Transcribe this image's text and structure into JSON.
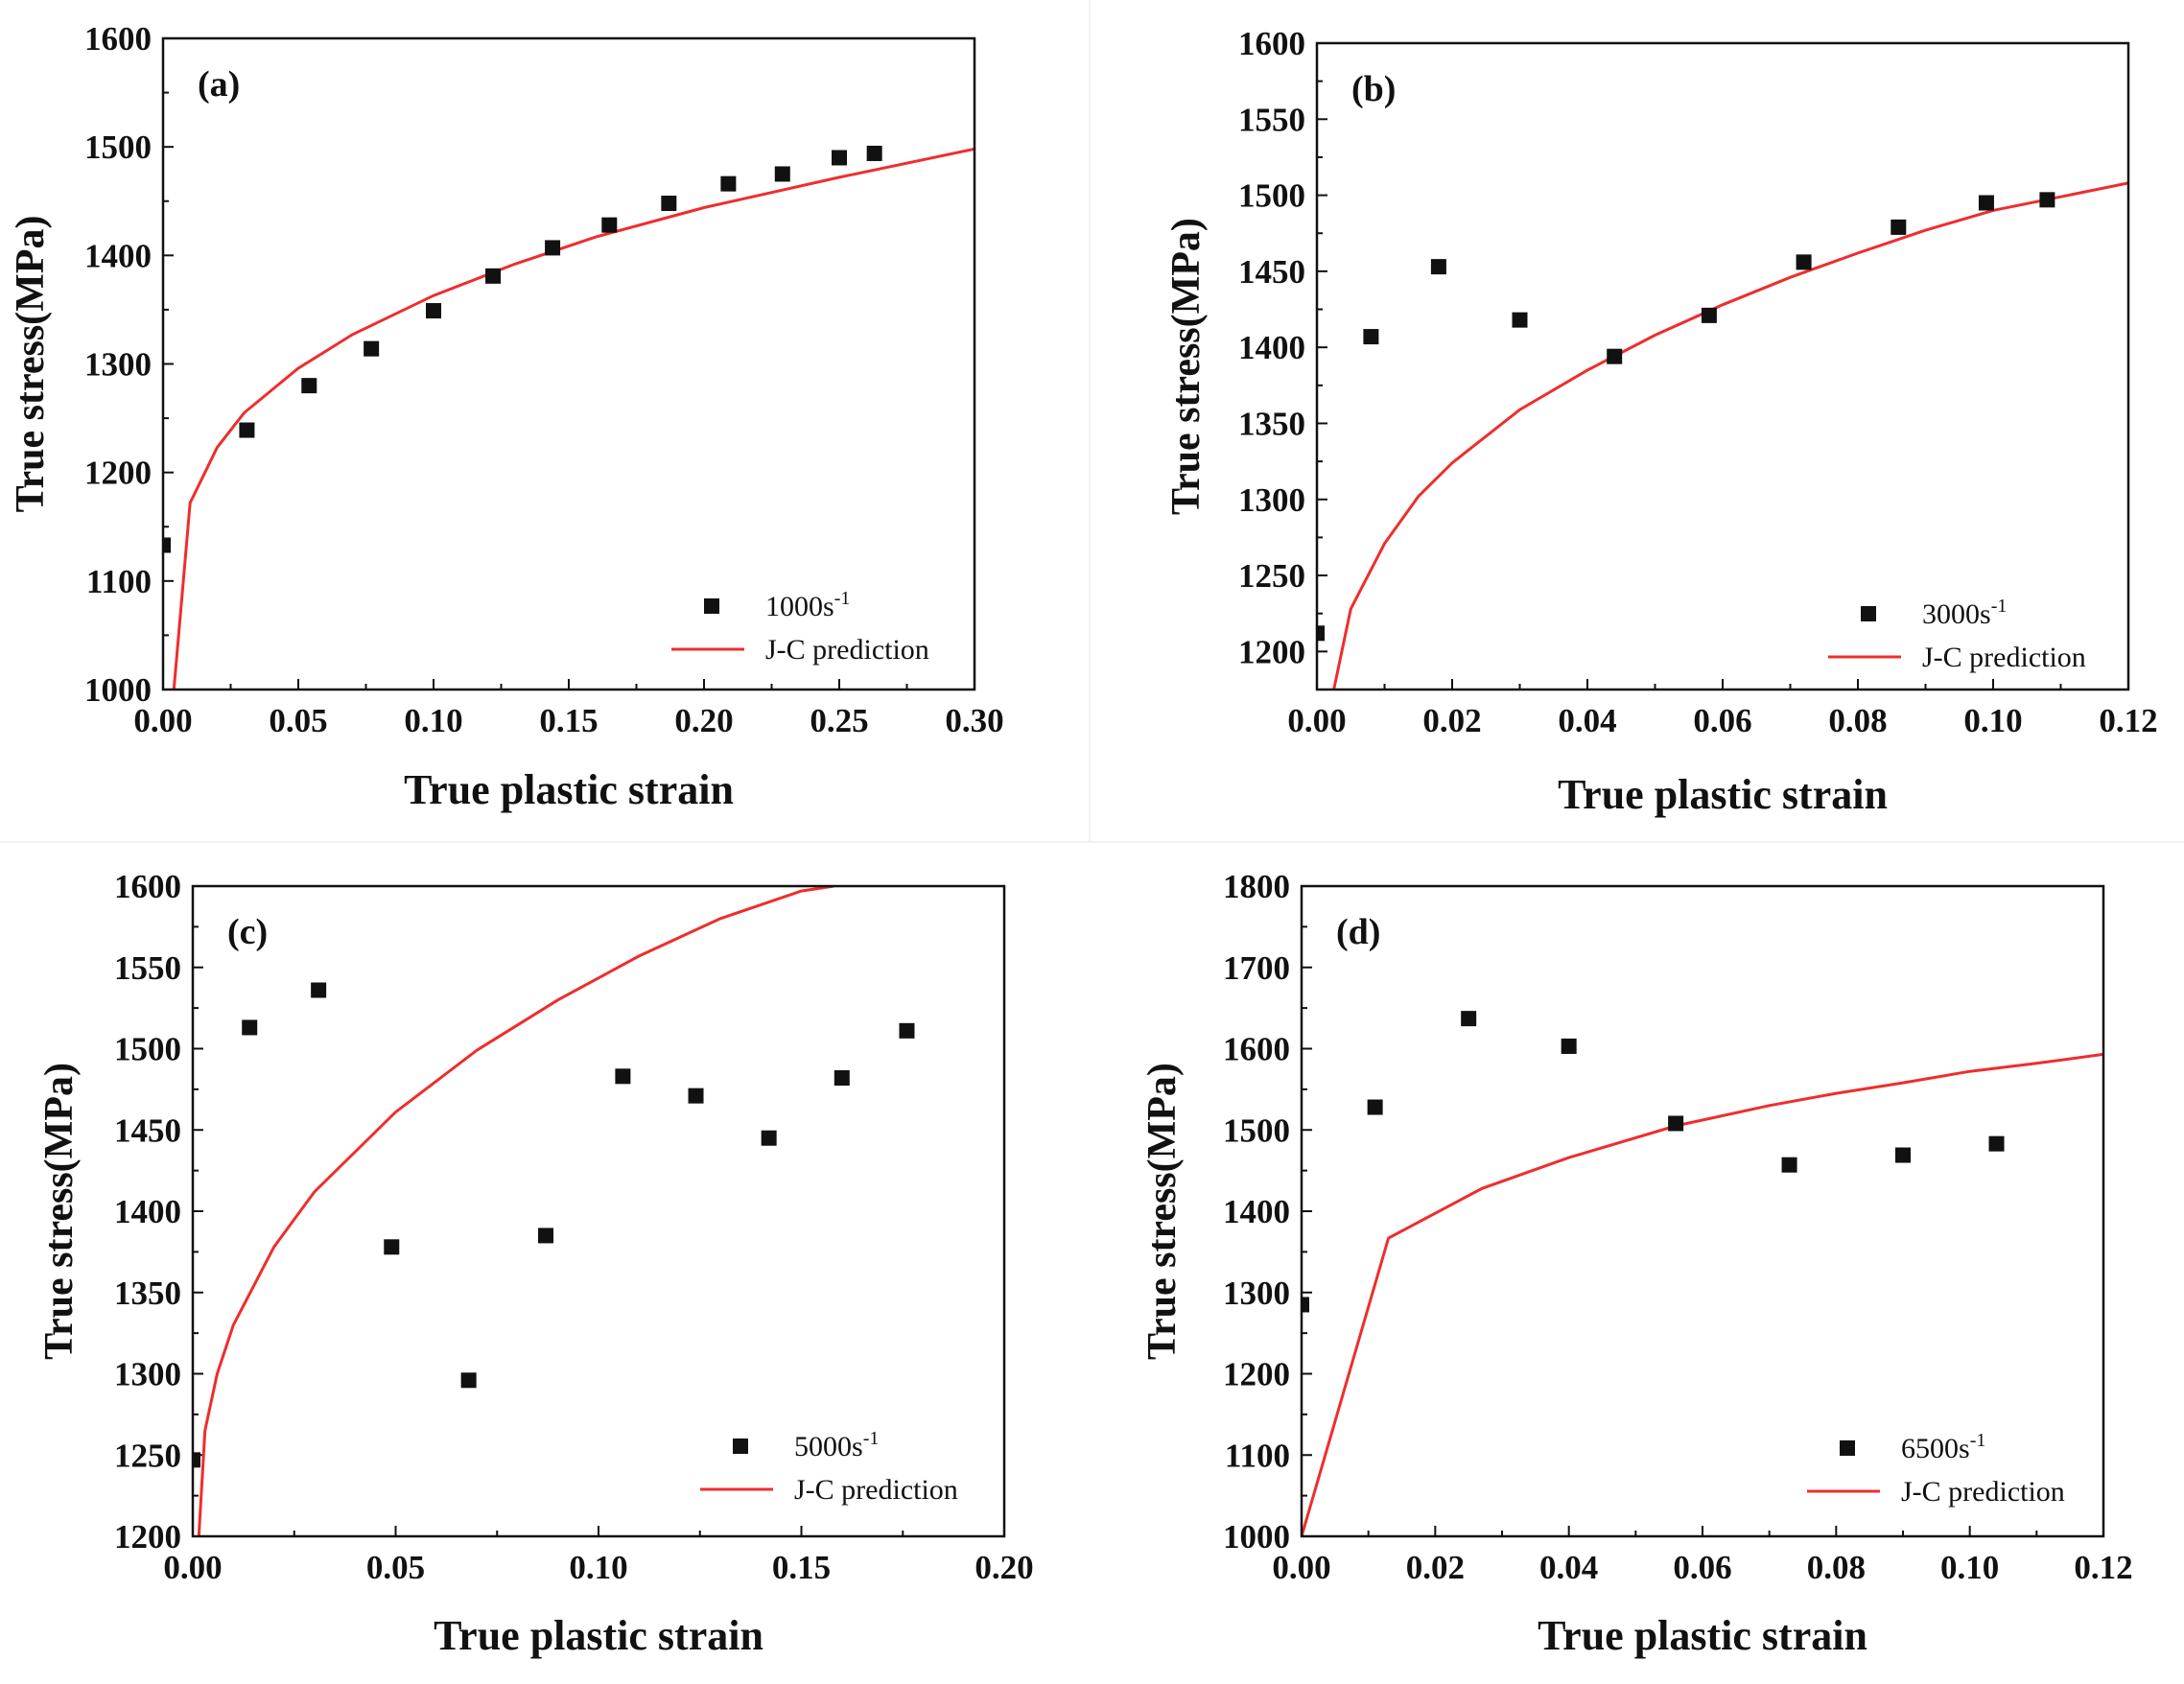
{
  "chart_data": [
    {
      "type": "scatter",
      "panel_label": "(a)",
      "xlabel": "True plastic strain",
      "ylabel": "True stress(MPa)",
      "xlim": [
        0,
        0.3
      ],
      "ylim": [
        1000,
        1600
      ],
      "xticks": [
        "0.00",
        "0.05",
        "0.10",
        "0.15",
        "0.20",
        "0.25",
        "0.30"
      ],
      "yticks": [
        "1000",
        "1100",
        "1200",
        "1300",
        "1400",
        "1500",
        "1600"
      ],
      "series": [
        {
          "name": "1000s",
          "superscript": "-1",
          "kind": "scatter",
          "x": [
            0.0,
            0.031,
            0.054,
            0.077,
            0.1,
            0.122,
            0.144,
            0.165,
            0.187,
            0.209,
            0.229,
            0.25,
            0.263
          ],
          "y": [
            1133,
            1239,
            1280,
            1314,
            1349,
            1381,
            1407,
            1428,
            1448,
            1466,
            1475,
            1490,
            1494
          ]
        },
        {
          "name": "J-C prediction",
          "kind": "line",
          "color": "#ef2d2d",
          "x": [
            0.004,
            0.01,
            0.02,
            0.03,
            0.05,
            0.07,
            0.1,
            0.13,
            0.16,
            0.2,
            0.25,
            0.3
          ],
          "y": [
            1000,
            1172,
            1223,
            1255,
            1296,
            1327,
            1363,
            1392,
            1417,
            1444,
            1472,
            1498
          ]
        }
      ]
    },
    {
      "type": "scatter",
      "panel_label": "(b)",
      "xlabel": "True plastic strain",
      "ylabel": "True stress(MPa)",
      "xlim": [
        0,
        0.12
      ],
      "ylim": [
        1175,
        1600
      ],
      "xticks": [
        "0.00",
        "0.02",
        "0.04",
        "0.06",
        "0.08",
        "0.10",
        "0.12"
      ],
      "yticks": [
        "1200",
        "1250",
        "1300",
        "1350",
        "1400",
        "1450",
        "1500",
        "1550",
        "1600"
      ],
      "series": [
        {
          "name": "3000s",
          "superscript": "-1",
          "kind": "scatter",
          "x": [
            0.0,
            0.008,
            0.018,
            0.03,
            0.044,
            0.058,
            0.072,
            0.086,
            0.099,
            0.108
          ],
          "y": [
            1212,
            1407,
            1453,
            1418,
            1394,
            1421,
            1456,
            1479,
            1495,
            1497
          ]
        },
        {
          "name": "J-C prediction",
          "kind": "line",
          "color": "#ef2d2d",
          "x": [
            0.0025,
            0.005,
            0.01,
            0.015,
            0.02,
            0.03,
            0.04,
            0.05,
            0.06,
            0.07,
            0.08,
            0.09,
            0.1,
            0.11,
            0.12
          ],
          "y": [
            1175,
            1228,
            1271,
            1302,
            1324,
            1359,
            1385,
            1408,
            1428,
            1446,
            1462,
            1477,
            1490,
            1499,
            1508
          ]
        }
      ]
    },
    {
      "type": "scatter",
      "panel_label": "(c)",
      "xlabel": "True plastic strain",
      "ylabel": "True stress(MPa)",
      "xlim": [
        0,
        0.2
      ],
      "ylim": [
        1200,
        1600
      ],
      "xticks": [
        "0.00",
        "0.05",
        "0.10",
        "0.15",
        "0.20"
      ],
      "yticks": [
        "1200",
        "1250",
        "1300",
        "1350",
        "1400",
        "1450",
        "1500",
        "1550",
        "1600"
      ],
      "series": [
        {
          "name": "5000s",
          "superscript": "-1",
          "kind": "scatter",
          "x": [
            0.0,
            0.014,
            0.031,
            0.049,
            0.068,
            0.087,
            0.106,
            0.124,
            0.142,
            0.16,
            0.176
          ],
          "y": [
            1247,
            1513,
            1536,
            1378,
            1296,
            1385,
            1483,
            1471,
            1445,
            1482,
            1511
          ]
        },
        {
          "name": "J-C prediction",
          "kind": "line",
          "color": "#ef2d2d",
          "x": [
            0.0015,
            0.003,
            0.006,
            0.01,
            0.02,
            0.03,
            0.05,
            0.07,
            0.09,
            0.11,
            0.13,
            0.15,
            0.158
          ],
          "y": [
            1200,
            1265,
            1300,
            1330,
            1378,
            1412,
            1461,
            1499,
            1530,
            1557,
            1580,
            1597,
            1600
          ]
        }
      ]
    },
    {
      "type": "scatter",
      "panel_label": "(d)",
      "xlabel": "True plastic strain",
      "ylabel": "True stress(MPa)",
      "xlim": [
        0,
        0.12
      ],
      "ylim": [
        1000,
        1800
      ],
      "xticks": [
        "0.00",
        "0.02",
        "0.04",
        "0.06",
        "0.08",
        "0.10",
        "0.12"
      ],
      "yticks": [
        "1000",
        "1100",
        "1200",
        "1300",
        "1400",
        "1500",
        "1600",
        "1700",
        "1800"
      ],
      "series": [
        {
          "name": "6500s",
          "superscript": "-1",
          "kind": "scatter",
          "x": [
            0.0,
            0.011,
            0.025,
            0.04,
            0.056,
            0.073,
            0.09,
            0.104
          ],
          "y": [
            1285,
            1528,
            1637,
            1603,
            1508,
            1457,
            1469,
            1483
          ]
        },
        {
          "name": "J-C prediction",
          "kind": "line",
          "color": "#ef2d2d",
          "x": [
            0.0,
            0.013,
            0.027,
            0.04,
            0.056,
            0.07,
            0.08,
            0.09,
            0.1,
            0.11,
            0.12
          ],
          "y": [
            1000,
            1367,
            1428,
            1466,
            1505,
            1530,
            1545,
            1558,
            1572,
            1582,
            1593
          ]
        }
      ]
    }
  ]
}
